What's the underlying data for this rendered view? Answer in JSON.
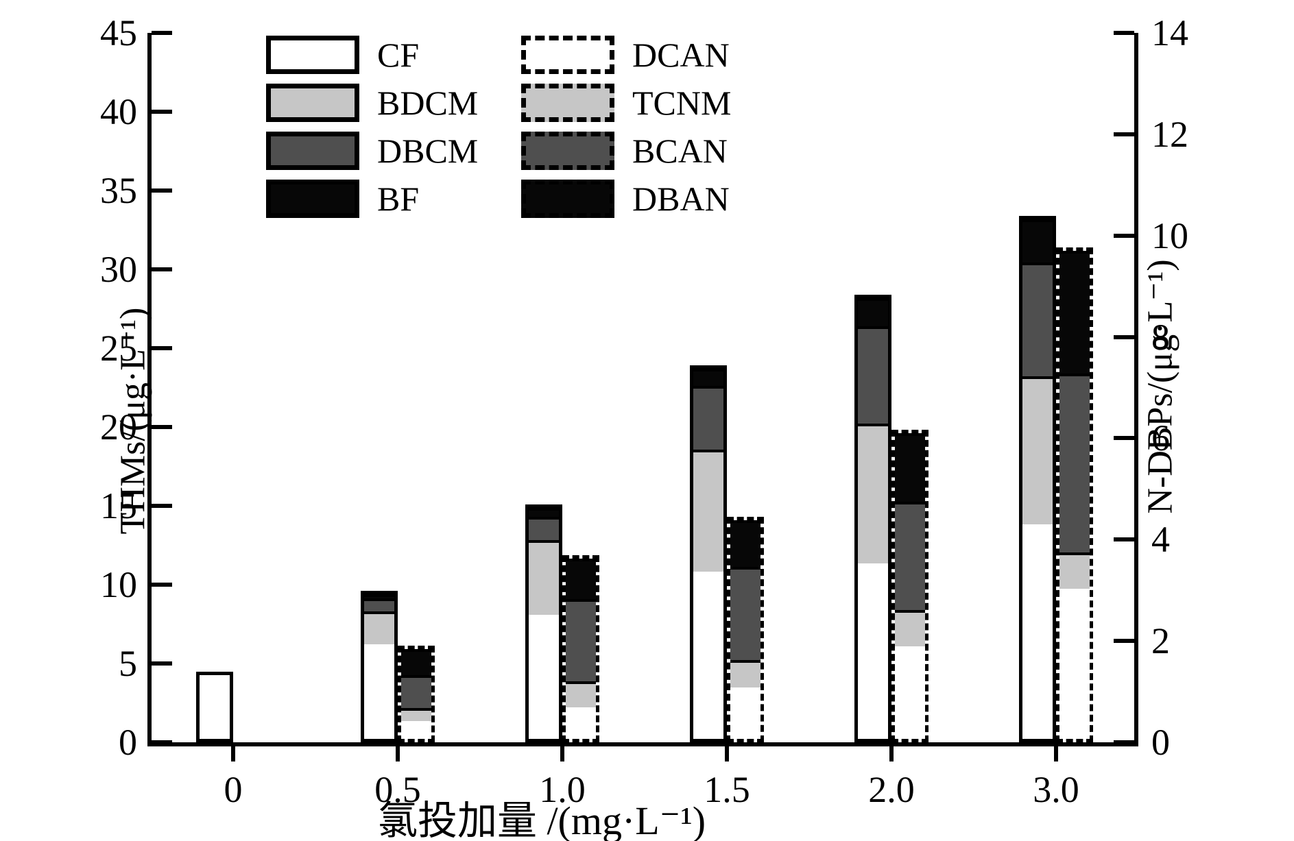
{
  "chart_data": {
    "type": "bar",
    "stacked": true,
    "dual_axis": true,
    "grid": false,
    "categories": [
      "0",
      "0.5",
      "1.0",
      "1.5",
      "2.0",
      "3.0"
    ],
    "xlabel": "氯投加量 /(mg·L⁻¹)",
    "left_axis": {
      "label": "THMs/(μg·L⁻¹)",
      "ylim": [
        0,
        45
      ],
      "ticks": [
        0,
        5,
        10,
        15,
        20,
        25,
        30,
        35,
        40,
        45
      ]
    },
    "right_axis": {
      "label": "N-DBPs/(μg·L⁻¹)",
      "ylim": [
        0,
        14
      ],
      "ticks": [
        0,
        2,
        4,
        6,
        8,
        10,
        12,
        14
      ]
    },
    "series_left_axis_THMs": [
      {
        "name": "CF",
        "color": "#ffffff",
        "outline": "solid",
        "values": [
          4.5,
          6.3,
          8.1,
          10.8,
          11.3,
          13.8
        ]
      },
      {
        "name": "BDCM",
        "color": "#c6c6c6",
        "outline": "solid",
        "values": [
          0,
          2.2,
          4.9,
          7.9,
          9.0,
          9.5
        ]
      },
      {
        "name": "DBCM",
        "color": "#4f4f4f",
        "outline": "solid",
        "values": [
          0,
          0.85,
          1.5,
          4.1,
          6.3,
          7.3
        ]
      },
      {
        "name": "BF",
        "color": "#070707",
        "outline": "solid",
        "values": [
          0,
          0.25,
          0.6,
          1.1,
          1.8,
          2.8
        ]
      }
    ],
    "series_right_axis_NDBPs": [
      {
        "name": "DCAN",
        "color": "#ffffff",
        "outline": "dashed",
        "values": [
          0,
          0.38,
          0.64,
          1.05,
          1.87,
          3.0
        ]
      },
      {
        "name": "TCNM",
        "color": "#c6c6c6",
        "outline": "dashed",
        "values": [
          0,
          0.28,
          0.54,
          0.55,
          0.73,
          0.73
        ]
      },
      {
        "name": "BCAN",
        "color": "#4f4f4f",
        "outline": "dashed",
        "values": [
          0,
          0.7,
          1.68,
          1.9,
          2.18,
          3.58
        ]
      },
      {
        "name": "DBAN",
        "color": "#070707",
        "outline": "dashed",
        "values": [
          0,
          0.55,
          0.83,
          0.95,
          1.39,
          2.45
        ]
      }
    ],
    "totals_left_THMs": [
      4.5,
      9.6,
      15.1,
      23.9,
      28.4,
      33.4
    ],
    "totals_right_NDBPs": [
      0,
      1.91,
      3.69,
      4.45,
      6.17,
      9.76
    ],
    "legend": {
      "solid_column": [
        "CF",
        "BDCM",
        "DBCM",
        "BF"
      ],
      "dashed_column": [
        "DCAN",
        "TCNM",
        "BCAN",
        "DBAN"
      ],
      "position": "upper-left"
    },
    "colors": {
      "white": "#ffffff",
      "light_gray": "#c6c6c6",
      "dark_gray": "#4f4f4f",
      "black": "#070707",
      "axis": "#000000"
    }
  }
}
